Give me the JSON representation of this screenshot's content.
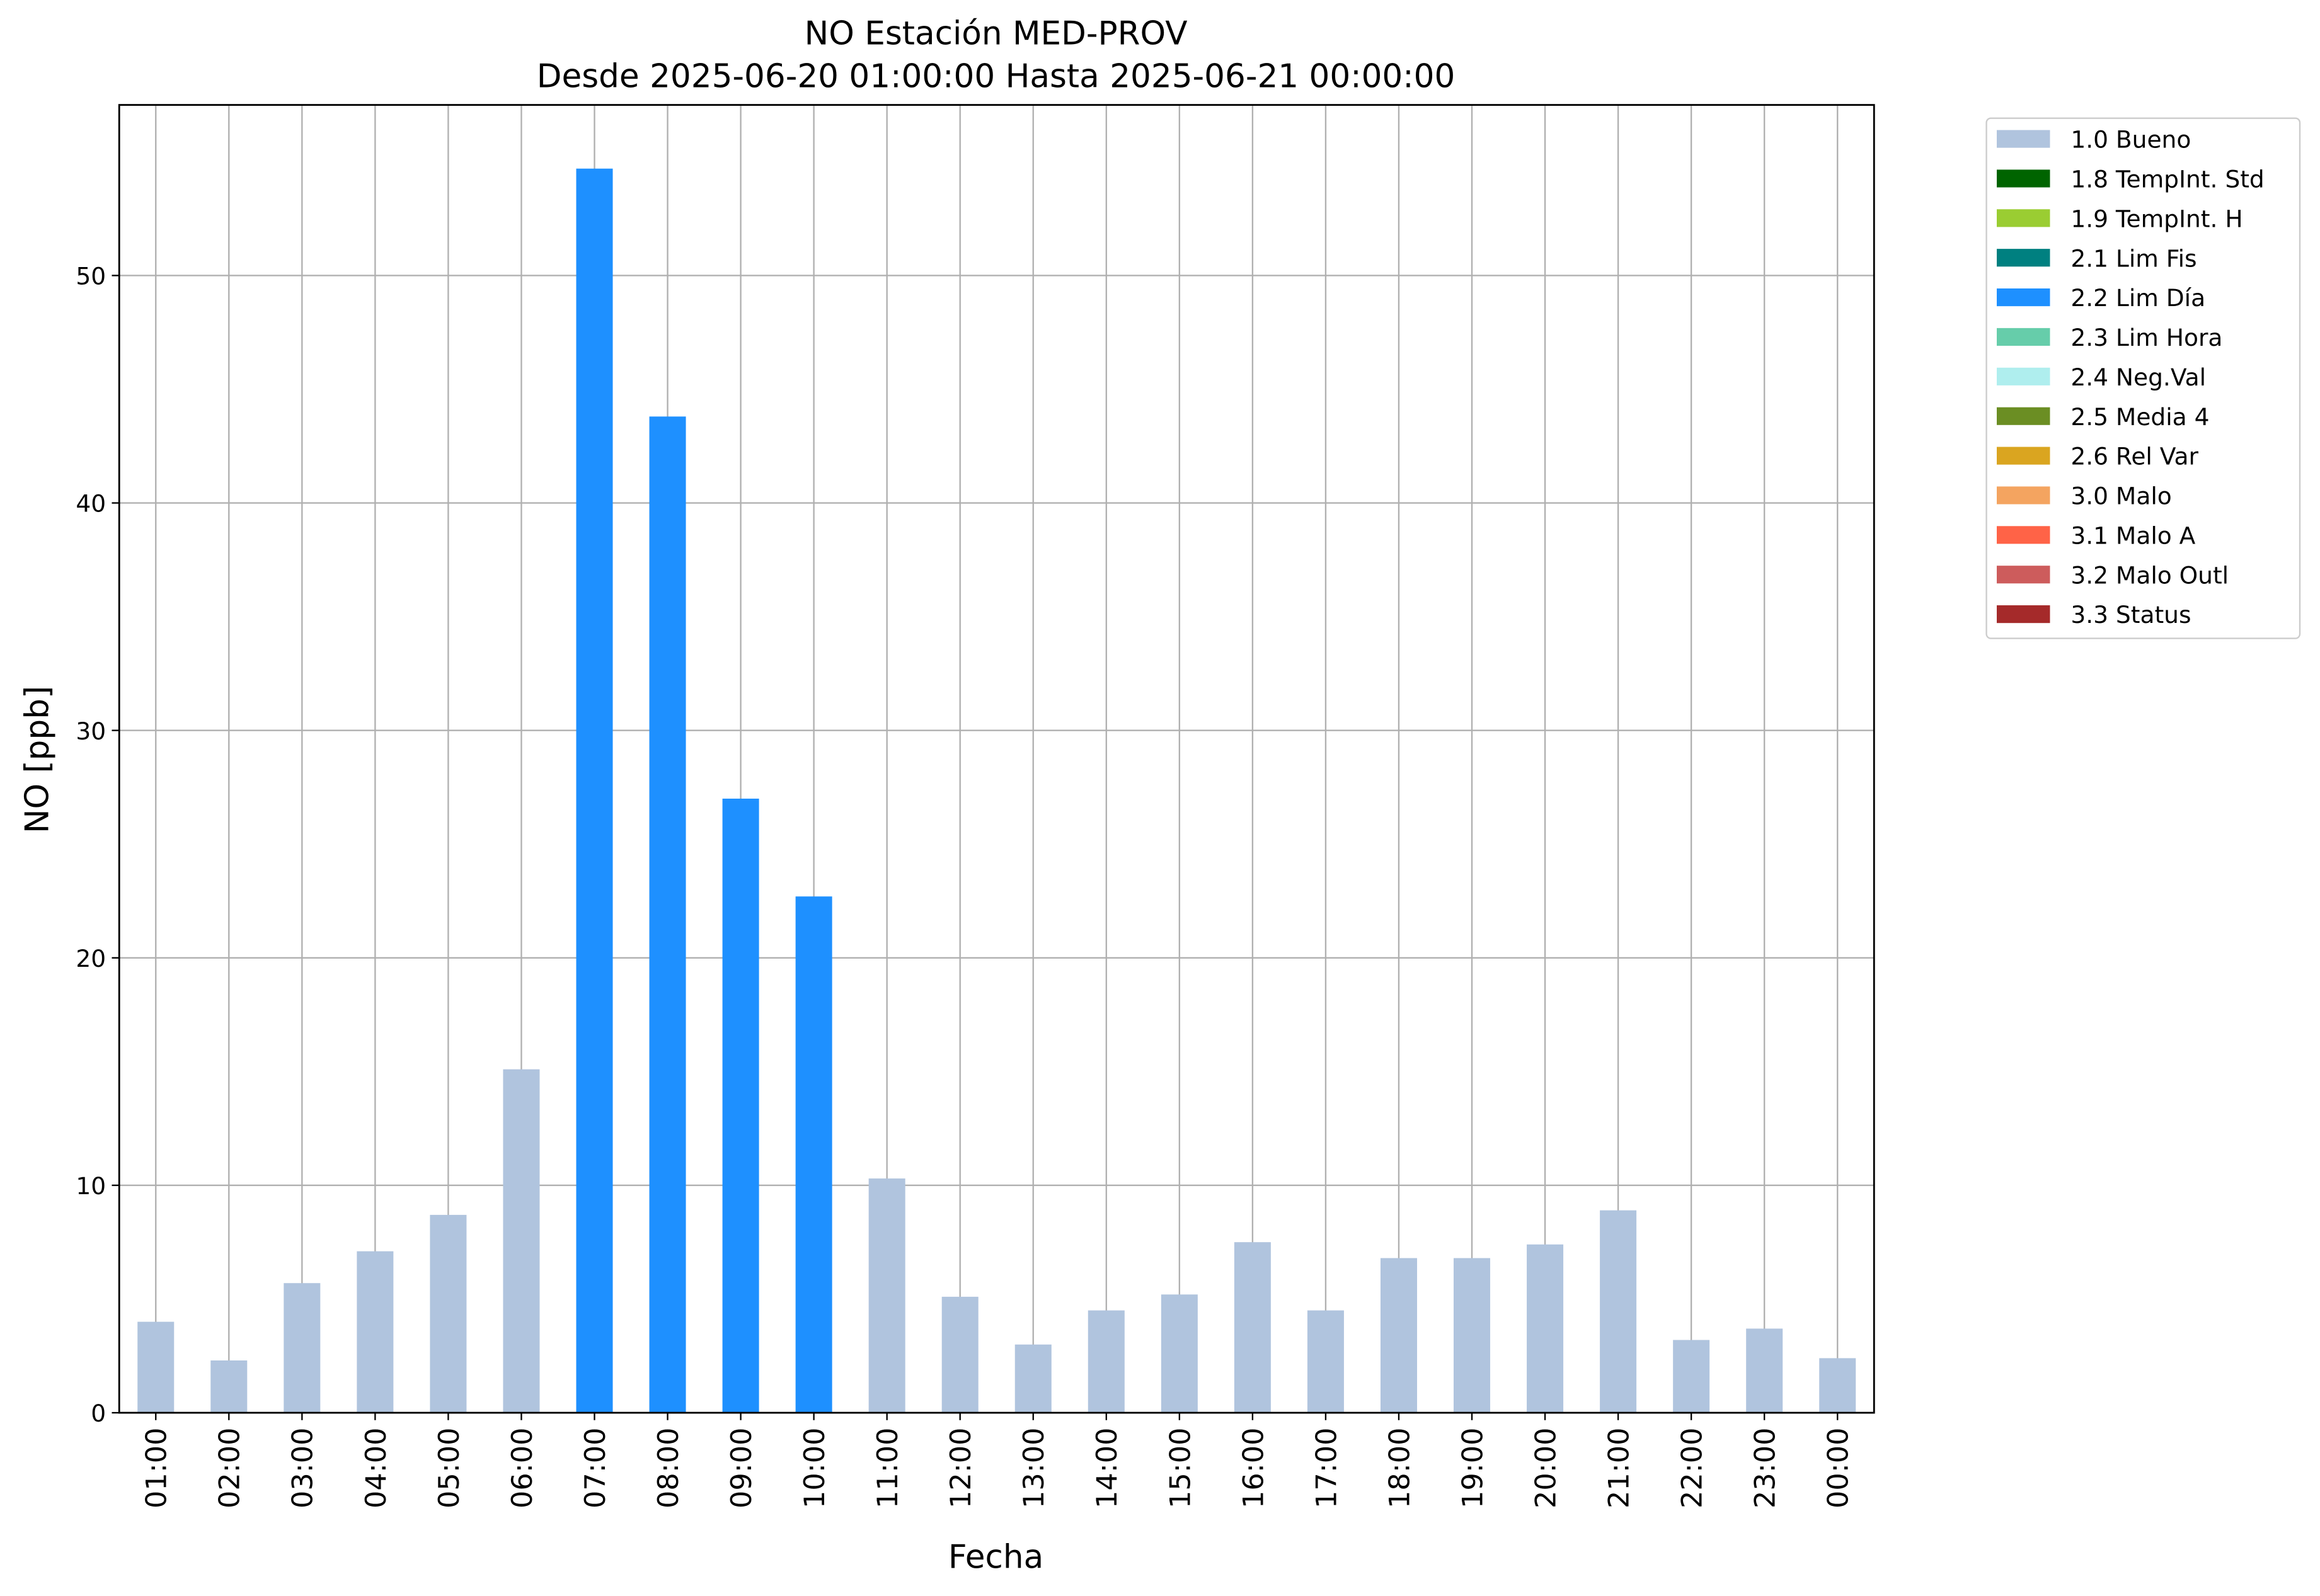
{
  "chart_data": {
    "type": "bar",
    "stacked": true,
    "title": "NO Estación MED-PROV",
    "subtitle": "Desde 2025-06-20 01:00:00 Hasta 2025-06-21 00:00:00",
    "x_label": "Fecha",
    "y_label": "NO [ppb]",
    "categories": [
      "01:00",
      "02:00",
      "03:00",
      "04:00",
      "05:00",
      "06:00",
      "07:00",
      "08:00",
      "09:00",
      "10:00",
      "11:00",
      "12:00",
      "13:00",
      "14:00",
      "15:00",
      "16:00",
      "17:00",
      "18:00",
      "19:00",
      "20:00",
      "21:00",
      "22:00",
      "23:00",
      "00:00"
    ],
    "ylim": [
      0,
      57.5
    ],
    "yticks": [
      0,
      10,
      20,
      30,
      40,
      50
    ],
    "grid": true,
    "legend": "outside-upper-right",
    "series": [
      {
        "name": "1.0 Bueno",
        "color": "#b0c4de",
        "values": [
          4.0,
          2.3,
          5.7,
          7.1,
          8.7,
          15.1,
          null,
          null,
          null,
          null,
          10.3,
          5.1,
          3.0,
          4.5,
          5.2,
          7.5,
          4.5,
          6.8,
          6.8,
          7.4,
          8.9,
          3.2,
          3.7,
          2.4
        ]
      },
      {
        "name": "1.8 TempInt. Std",
        "color": "#006400",
        "values": [
          null,
          null,
          null,
          null,
          null,
          null,
          null,
          null,
          null,
          null,
          null,
          null,
          null,
          null,
          null,
          null,
          null,
          null,
          null,
          null,
          null,
          null,
          null,
          null
        ]
      },
      {
        "name": "1.9 TempInt. H",
        "color": "#9acd32",
        "values": [
          null,
          null,
          null,
          null,
          null,
          null,
          null,
          null,
          null,
          null,
          null,
          null,
          null,
          null,
          null,
          null,
          null,
          null,
          null,
          null,
          null,
          null,
          null,
          null
        ]
      },
      {
        "name": "2.1 Lim Fis",
        "color": "#008080",
        "values": [
          null,
          null,
          null,
          null,
          null,
          null,
          null,
          null,
          null,
          null,
          null,
          null,
          null,
          null,
          null,
          null,
          null,
          null,
          null,
          null,
          null,
          null,
          null,
          null
        ]
      },
      {
        "name": "2.2 Lim Día",
        "color": "#1e90ff",
        "values": [
          null,
          null,
          null,
          null,
          null,
          null,
          54.7,
          43.8,
          27.0,
          22.7,
          null,
          null,
          null,
          null,
          null,
          null,
          null,
          null,
          null,
          null,
          null,
          null,
          null,
          null
        ]
      },
      {
        "name": "2.3 Lim Hora",
        "color": "#66cdaa",
        "values": [
          null,
          null,
          null,
          null,
          null,
          null,
          null,
          null,
          null,
          null,
          null,
          null,
          null,
          null,
          null,
          null,
          null,
          null,
          null,
          null,
          null,
          null,
          null,
          null
        ]
      },
      {
        "name": "2.4 Neg.Val",
        "color": "#afeeee",
        "values": [
          null,
          null,
          null,
          null,
          null,
          null,
          null,
          null,
          null,
          null,
          null,
          null,
          null,
          null,
          null,
          null,
          null,
          null,
          null,
          null,
          null,
          null,
          null,
          null
        ]
      },
      {
        "name": "2.5 Media 4",
        "color": "#6b8e23",
        "values": [
          null,
          null,
          null,
          null,
          null,
          null,
          null,
          null,
          null,
          null,
          null,
          null,
          null,
          null,
          null,
          null,
          null,
          null,
          null,
          null,
          null,
          null,
          null,
          null
        ]
      },
      {
        "name": "2.6 Rel Var",
        "color": "#daa520",
        "values": [
          null,
          null,
          null,
          null,
          null,
          null,
          null,
          null,
          null,
          null,
          null,
          null,
          null,
          null,
          null,
          null,
          null,
          null,
          null,
          null,
          null,
          null,
          null,
          null
        ]
      },
      {
        "name": "3.0 Malo",
        "color": "#f4a460",
        "values": [
          null,
          null,
          null,
          null,
          null,
          null,
          null,
          null,
          null,
          null,
          null,
          null,
          null,
          null,
          null,
          null,
          null,
          null,
          null,
          null,
          null,
          null,
          null,
          null
        ]
      },
      {
        "name": "3.1 Malo A",
        "color": "#ff6347",
        "values": [
          null,
          null,
          null,
          null,
          null,
          null,
          null,
          null,
          null,
          null,
          null,
          null,
          null,
          null,
          null,
          null,
          null,
          null,
          null,
          null,
          null,
          null,
          null,
          null
        ]
      },
      {
        "name": "3.2 Malo Outl",
        "color": "#cd5c5c",
        "values": [
          null,
          null,
          null,
          null,
          null,
          null,
          null,
          null,
          null,
          null,
          null,
          null,
          null,
          null,
          null,
          null,
          null,
          null,
          null,
          null,
          null,
          null,
          null,
          null
        ]
      },
      {
        "name": "3.3 Status",
        "color": "#a52a2a",
        "values": [
          null,
          null,
          null,
          null,
          null,
          null,
          null,
          null,
          null,
          null,
          null,
          null,
          null,
          null,
          null,
          null,
          null,
          null,
          null,
          null,
          null,
          null,
          null,
          null
        ]
      }
    ]
  }
}
